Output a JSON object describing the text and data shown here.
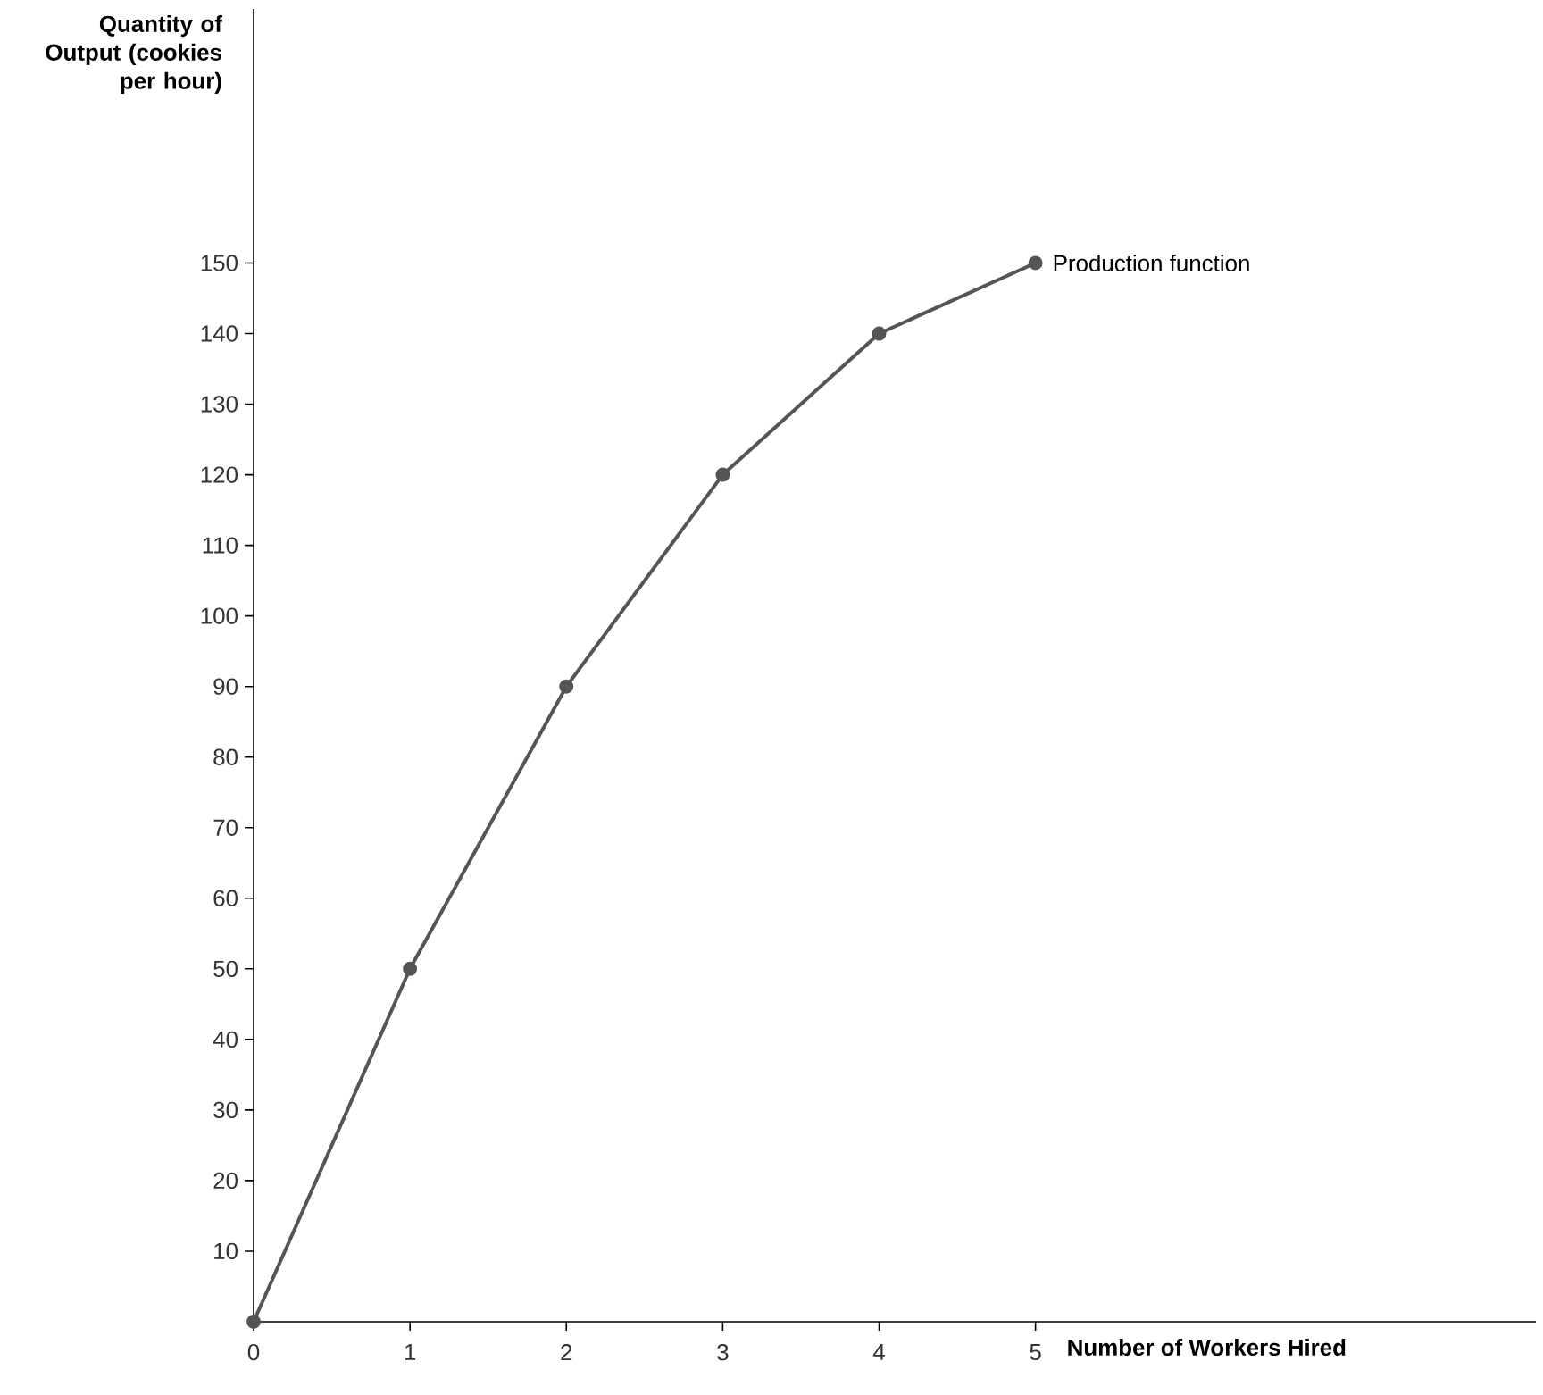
{
  "chart_data": {
    "type": "line",
    "xlabel": "Number of Workers Hired",
    "ylabel": "Quantity of Output (cookies per hour)",
    "x": [
      0,
      1,
      2,
      3,
      4,
      5
    ],
    "series": [
      {
        "color": "#555555",
        "values": [
          0,
          50,
          90,
          120,
          140,
          150
        ]
      }
    ],
    "annotations": [
      {
        "text": "Production function",
        "x": 5,
        "y": 150
      }
    ],
    "xlim": [
      0,
      8.2
    ],
    "ylim": [
      0,
      186
    ],
    "xticks": [
      0,
      1,
      2,
      3,
      4,
      5
    ],
    "yticks": [
      10,
      20,
      30,
      40,
      50,
      60,
      70,
      80,
      90,
      100,
      110,
      120,
      130,
      140,
      150
    ],
    "marker": "circle",
    "line_style": "solid"
  }
}
